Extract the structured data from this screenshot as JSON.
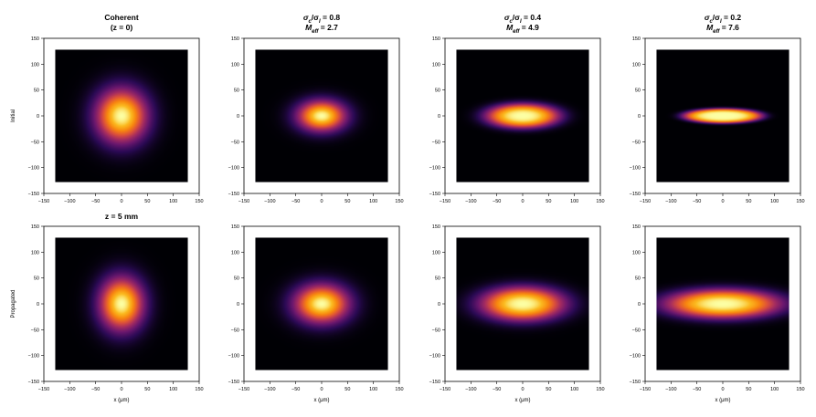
{
  "chart_data": {
    "type": "heatmap",
    "colormap": [
      "#000004",
      "#2b0a55",
      "#6a176e",
      "#a52c60",
      "#dd513a",
      "#f8850f",
      "#fbba1f",
      "#fcffa4"
    ],
    "background": "#000000",
    "extent_um": 128,
    "xlim": [
      -150,
      150
    ],
    "ylim": [
      -150,
      150
    ],
    "xticks": [
      "−150",
      "−100",
      "−50",
      "0",
      "50",
      "100",
      "150"
    ],
    "yticks": [
      "150",
      "100",
      "50",
      "0",
      "−50",
      "−100",
      "−150"
    ],
    "xlabel": "x (μm)",
    "row_labels": [
      "Initial",
      "Propagated"
    ],
    "columns": [
      {
        "title_line1": "Coherent",
        "title_line2": "(z = 0)",
        "title_propagated": "z = 5 mm",
        "initial_beam": {
          "wx": 64,
          "wy": 67,
          "order": 1
        },
        "propagated_beam": {
          "wx": 55,
          "wy": 66,
          "order": 1
        }
      },
      {
        "title_line1": "σ_c/σ_I = 0.8",
        "title_line2": "M_eff = 2.7",
        "title_propagated": "",
        "initial_beam": {
          "wx": 60,
          "wy": 38,
          "order": 1
        },
        "propagated_beam": {
          "wx": 68,
          "wy": 48,
          "order": 1
        }
      },
      {
        "title_line1": "σ_c/σ_I = 0.4",
        "title_line2": "M_eff = 4.9",
        "title_propagated": "",
        "initial_beam": {
          "wx": 84,
          "wy": 28,
          "order": 1.5
        },
        "propagated_beam": {
          "wx": 100,
          "wy": 40,
          "order": 1.2
        }
      },
      {
        "title_line1": "σ_c/σ_I = 0.2",
        "title_line2": "M_eff = 7.6",
        "title_propagated": "",
        "initial_beam": {
          "wx": 85,
          "wy": 16,
          "order": 2.4
        },
        "propagated_beam": {
          "wx": 135,
          "wy": 34,
          "order": 1.3
        }
      }
    ]
  }
}
